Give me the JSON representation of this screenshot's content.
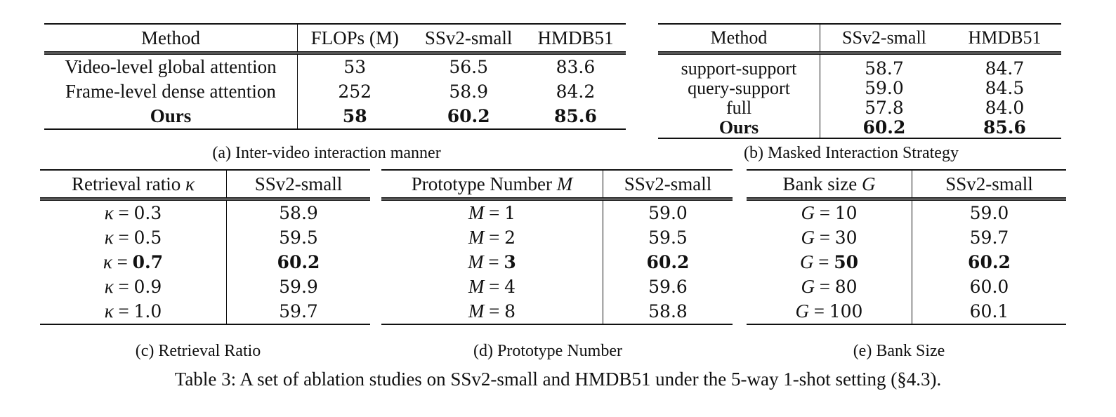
{
  "table_a": {
    "caption": "(a) Inter-video interaction manner",
    "headers": [
      "Method",
      "FLOPs (M)",
      "SSv2-small",
      "HMDB51"
    ],
    "rows": [
      {
        "cells": [
          "Video-level global attention",
          "53",
          "56.5",
          "83.6"
        ],
        "bold": false
      },
      {
        "cells": [
          "Frame-level dense attention",
          "252",
          "58.9",
          "84.2"
        ],
        "bold": false
      },
      {
        "cells": [
          "Ours",
          "58",
          "60.2",
          "85.6"
        ],
        "bold": true
      }
    ]
  },
  "table_b": {
    "caption": "(b) Masked Interaction Strategy",
    "headers": [
      "Method",
      "SSv2-small",
      "HMDB51"
    ],
    "rows": [
      {
        "cells": [
          "support-support",
          "58.7",
          "84.7"
        ],
        "bold": false
      },
      {
        "cells": [
          "query-support",
          "59.0",
          "84.5"
        ],
        "bold": false
      },
      {
        "cells": [
          "full",
          "57.8",
          "84.0"
        ],
        "bold": false
      },
      {
        "cells": [
          "Ours",
          "60.2",
          "85.6"
        ],
        "bold": true
      }
    ]
  },
  "table_c": {
    "caption": "(c) Retrieval Ratio",
    "header_label": "Retrieval ratio",
    "header_symbol": "κ",
    "header_value": "SSv2-small",
    "var": "κ",
    "rows": [
      {
        "param": "0.3",
        "value": "58.9",
        "bold": false
      },
      {
        "param": "0.5",
        "value": "59.5",
        "bold": false
      },
      {
        "param": "0.7",
        "value": "60.2",
        "bold": true
      },
      {
        "param": "0.9",
        "value": "59.9",
        "bold": false
      },
      {
        "param": "1.0",
        "value": "59.7",
        "bold": false
      }
    ]
  },
  "table_d": {
    "caption": "(d) Prototype Number",
    "header_label": "Prototype Number",
    "header_symbol": "M",
    "header_value": "SSv2-small",
    "var": "M",
    "rows": [
      {
        "param": "1",
        "value": "59.0",
        "bold": false
      },
      {
        "param": "2",
        "value": "59.5",
        "bold": false
      },
      {
        "param": "3",
        "value": "60.2",
        "bold": true
      },
      {
        "param": "4",
        "value": "59.6",
        "bold": false
      },
      {
        "param": "8",
        "value": "58.8",
        "bold": false
      }
    ]
  },
  "table_e": {
    "caption": "(e) Bank Size",
    "header_label": "Bank size",
    "header_symbol": "G",
    "header_value": "SSv2-small",
    "var": "G",
    "rows": [
      {
        "param": "10",
        "value": "59.0",
        "bold": false
      },
      {
        "param": "30",
        "value": "59.7",
        "bold": false
      },
      {
        "param": "50",
        "value": "60.2",
        "bold": true
      },
      {
        "param": "80",
        "value": "60.0",
        "bold": false
      },
      {
        "param": "100",
        "value": "60.1",
        "bold": false
      }
    ]
  },
  "main_caption": "Table 3: A set of ablation studies on SSv2-small and HMDB51 under the 5-way 1-shot setting (§4.3)."
}
